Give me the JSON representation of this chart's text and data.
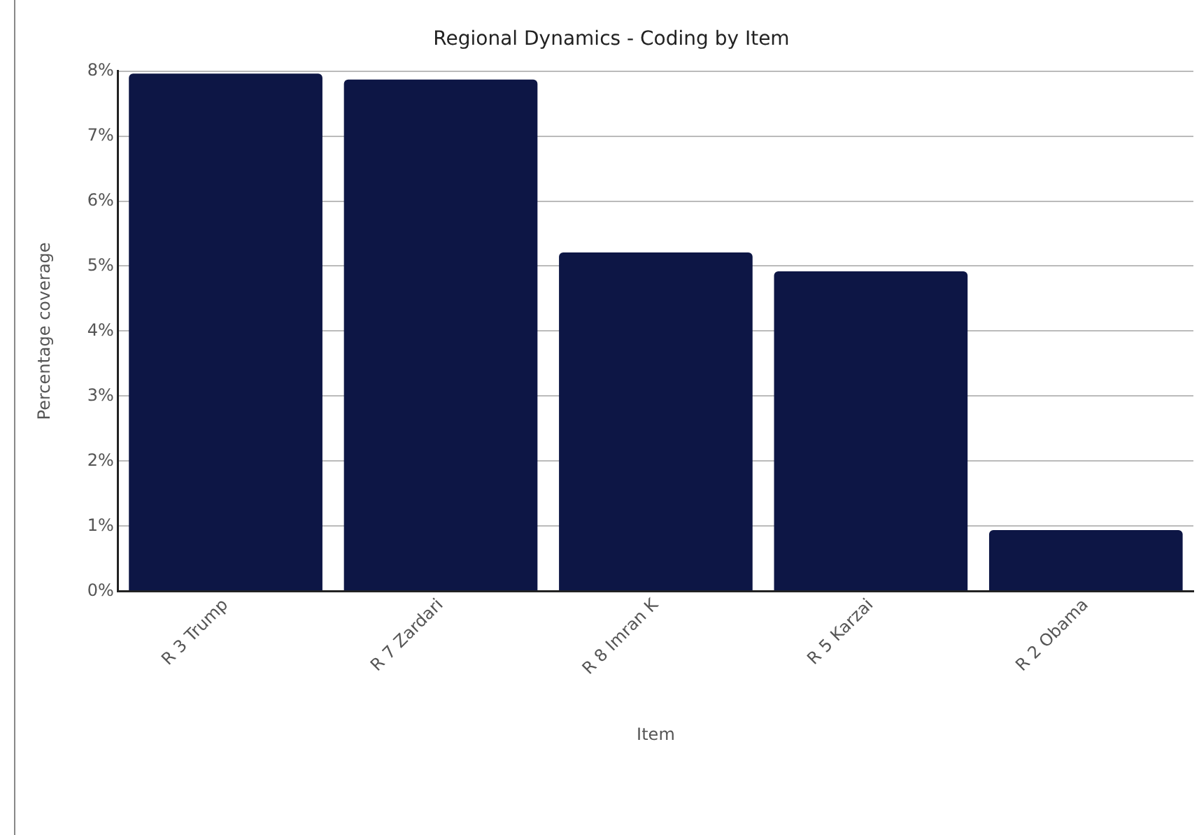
{
  "chart_data": {
    "type": "bar",
    "title": "Regional Dynamics - Coding by Item",
    "xlabel": "Item",
    "ylabel": "Percentage coverage",
    "categories": [
      "R 3 Trump",
      "R 7 Zardari",
      "R 8 Imran K",
      "R 5 Karzai",
      "R 2 Obama"
    ],
    "values": [
      7.96,
      7.87,
      5.21,
      4.92,
      0.94
    ],
    "color": "#0d1645",
    "ylim": [
      0,
      8
    ],
    "yticks": [
      {
        "value": 0,
        "label": "0%"
      },
      {
        "value": 1,
        "label": "1%"
      },
      {
        "value": 2,
        "label": "2%"
      },
      {
        "value": 3,
        "label": "3%"
      },
      {
        "value": 4,
        "label": "4%"
      },
      {
        "value": 5,
        "label": "5%"
      },
      {
        "value": 6,
        "label": "6%"
      },
      {
        "value": 7,
        "label": "7%"
      },
      {
        "value": 8,
        "label": "8%"
      }
    ],
    "grid": "y",
    "legend": false
  }
}
